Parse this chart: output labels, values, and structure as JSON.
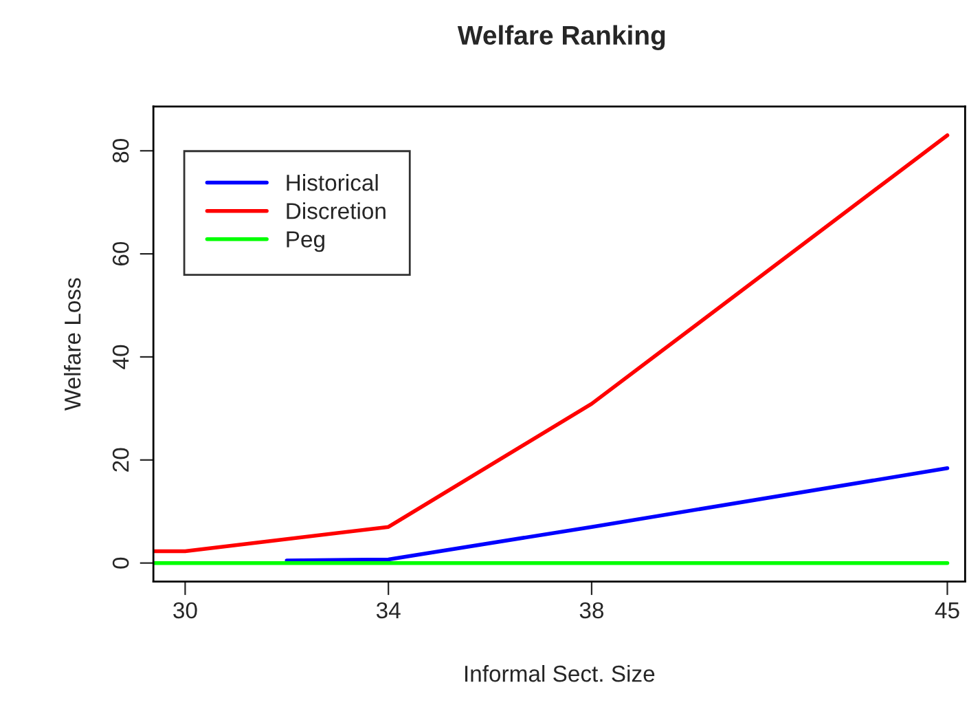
{
  "chart_data": {
    "type": "line",
    "title": "Welfare Ranking",
    "xlabel": "Informal Sect. Size",
    "ylabel": "Welfare Loss",
    "xlim": [
      29.375,
      45.35
    ],
    "xticks": [
      30,
      34,
      38,
      45
    ],
    "ylim": [
      -3.6,
      88.6
    ],
    "yticks": [
      0,
      20,
      40,
      60,
      80
    ],
    "grid": false,
    "legend": "top left",
    "line_style": "solid",
    "marker": "none",
    "series": [
      {
        "name": "Historical",
        "color": "#0000ff",
        "x": [
          32,
          34,
          38,
          45
        ],
        "values": [
          0.5,
          0.7,
          7.0,
          18.4
        ]
      },
      {
        "name": "Discretion",
        "color": "#ff0000",
        "x": [
          29.375,
          30,
          34,
          38,
          45
        ],
        "values": [
          2.3,
          2.3,
          7.0,
          30.9,
          83.0
        ]
      },
      {
        "name": "Peg",
        "color": "#00ff00",
        "x": [
          29.375,
          45
        ],
        "values": [
          0,
          0
        ]
      }
    ]
  }
}
